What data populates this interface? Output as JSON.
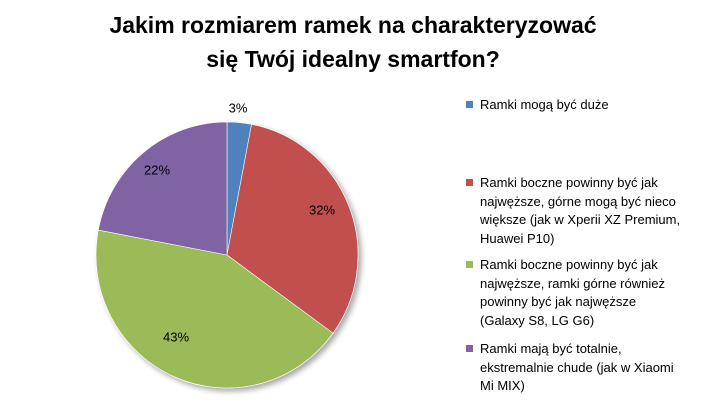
{
  "chart_data": {
    "type": "pie",
    "title": "Jakim rozmiarem ramek na charakteryzować\nsię Twój idealny smartfon?",
    "slices": [
      {
        "name": "Ramki mogą być duże",
        "value": 3,
        "label": "3%",
        "color": "#4f81bd"
      },
      {
        "name": "Ramki boczne powinny  być jak\nnajwęższe, górne mogą być nieco\nwiększe (jak w Xperii XZ Premium,\nHuawei P10)",
        "value": 32,
        "label": "32%",
        "color": "#c0504d"
      },
      {
        "name": "Ramki boczne powinny  być jak\nnajwęższe, ramki górne również\npowinny być jak najwęższe\n(Galaxy S8, LG G6)",
        "value": 43,
        "label": "43%",
        "color": "#9bbb59"
      },
      {
        "name": "Ramki mają być totalnie,\nekstremalnie chude (jak w Xiaomi\nMi MIX)",
        "value": 22,
        "label": "22%",
        "color": "#8064a2"
      }
    ],
    "legend": "right"
  }
}
